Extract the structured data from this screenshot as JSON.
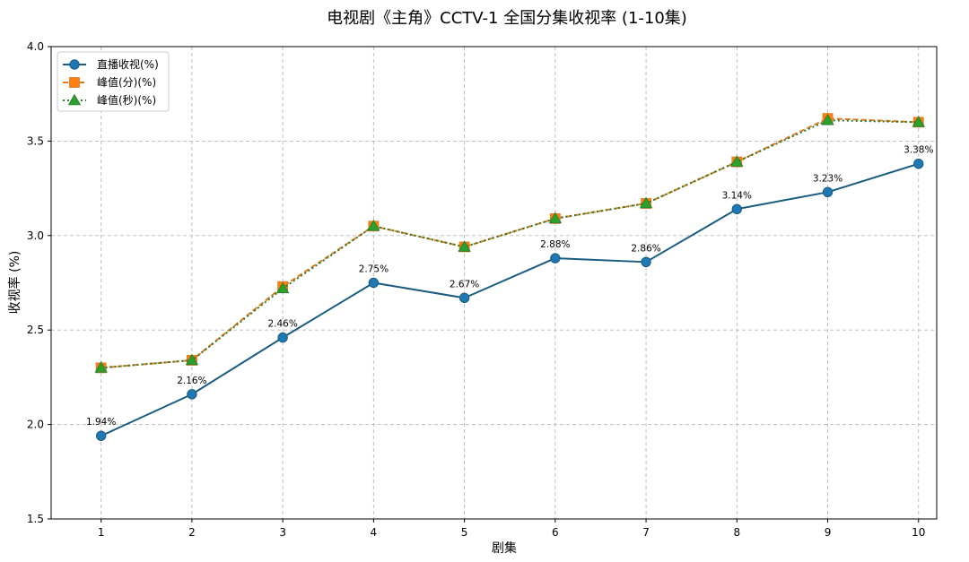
{
  "chart_data": {
    "type": "line",
    "title": "电视剧《主角》CCTV-1 全国分集收视率 (1-10集)",
    "xlabel": "剧集",
    "ylabel": "收视率 (%)",
    "x": [
      1,
      2,
      3,
      4,
      5,
      6,
      7,
      8,
      9,
      10
    ],
    "xlim": [
      0.45,
      10.2
    ],
    "ylim": [
      1.5,
      4.0
    ],
    "yticks": [
      "1.5",
      "2.0",
      "2.5",
      "3.0",
      "3.5",
      "4.0"
    ],
    "grid": true,
    "legend_position": "top-left",
    "series": [
      {
        "name": "直播收视(%)",
        "values": [
          1.94,
          2.16,
          2.46,
          2.75,
          2.67,
          2.88,
          2.86,
          3.14,
          3.23,
          3.38
        ],
        "labels": [
          "1.94%",
          "2.16%",
          "2.46%",
          "2.75%",
          "2.67%",
          "2.88%",
          "2.86%",
          "3.14%",
          "3.23%",
          "3.38%"
        ],
        "color": "#1a5c80",
        "marker_color": "#1f77b4",
        "marker": "circle",
        "linestyle": "solid"
      },
      {
        "name": "峰值(分)(%)",
        "values": [
          2.3,
          2.34,
          2.73,
          3.05,
          2.94,
          3.09,
          3.17,
          3.39,
          3.62,
          3.6
        ],
        "color": "#e07b20",
        "marker_color": "#ff7f0e",
        "marker": "square",
        "linestyle": "dashed"
      },
      {
        "name": "峰值(秒)(%)",
        "values": [
          2.3,
          2.34,
          2.72,
          3.05,
          2.94,
          3.09,
          3.17,
          3.39,
          3.61,
          3.6
        ],
        "color": "#2a7a2a",
        "marker_color": "#2ca02c",
        "marker": "triangle",
        "linestyle": "dotted"
      }
    ]
  }
}
